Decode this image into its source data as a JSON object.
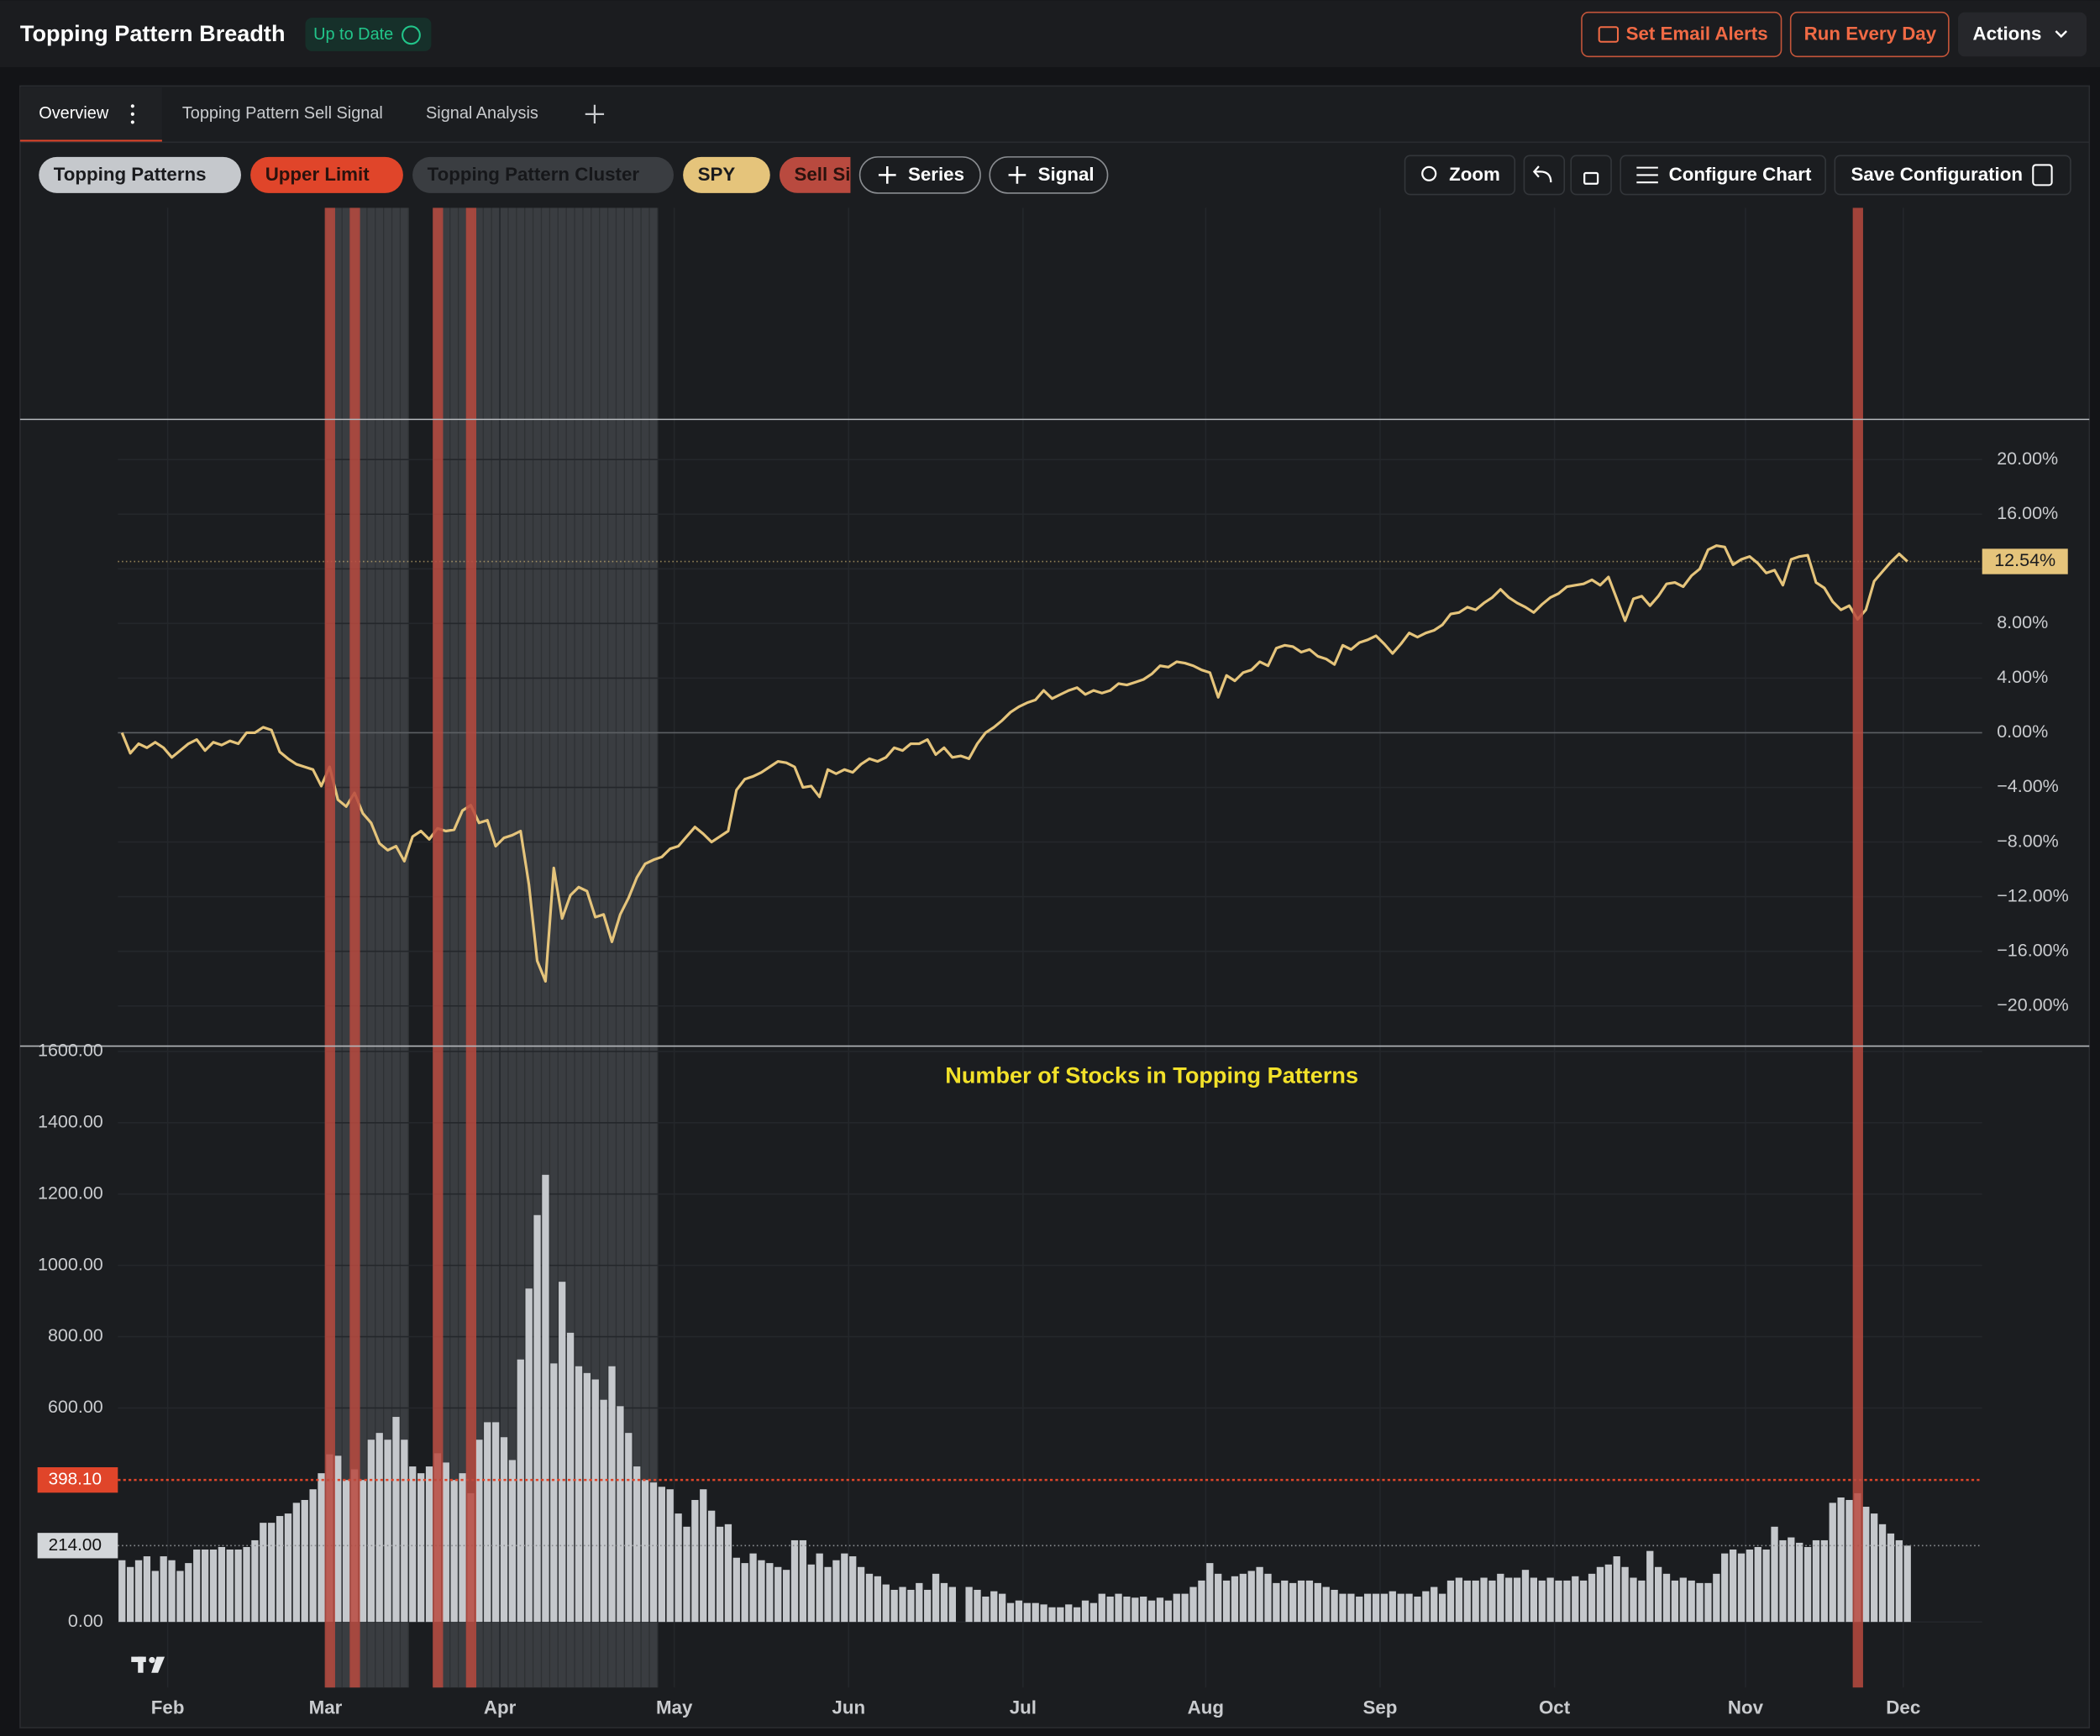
{
  "ui": {
    "title": "Topping Pattern Breadth",
    "status": "Up to Date",
    "buttons": [
      "Set Email Alerts",
      "Run Every Day",
      "Actions"
    ],
    "tabs": [
      "Overview",
      "Topping Pattern Sell Signal",
      "Signal Analysis"
    ],
    "add_buttons": [
      "Series",
      "Signal"
    ],
    "toolbar": [
      "Zoom",
      "Configure Chart",
      "Save Configuration"
    ]
  },
  "chart_data": {
    "type": "combo",
    "title": "Number of Stocks in Topping Patterns",
    "xlim": [
      0,
      224.5
    ],
    "xticks": [
      {
        "value": 6,
        "label": "Feb"
      },
      {
        "value": 25,
        "label": "Mar"
      },
      {
        "value": 46,
        "label": "Apr"
      },
      {
        "value": 67,
        "label": "May"
      },
      {
        "value": 88,
        "label": "Jun"
      },
      {
        "value": 109,
        "label": "Jul"
      },
      {
        "value": 131,
        "label": "Aug"
      },
      {
        "value": 152,
        "label": "Sep"
      },
      {
        "value": 173,
        "label": "Oct"
      },
      {
        "value": 196,
        "label": "Nov"
      },
      {
        "value": 215,
        "label": "Dec"
      }
    ],
    "ylim": [
      -184,
      1615
    ],
    "yticks": [
      {
        "value": 0,
        "label": "0.00"
      },
      {
        "value": 600,
        "label": "600.00"
      },
      {
        "value": 800,
        "label": "800.00"
      },
      {
        "value": 1000,
        "label": "1000.00"
      },
      {
        "value": 1200,
        "label": "1200.00"
      },
      {
        "value": 1400,
        "label": "1400.00"
      },
      {
        "value": 1600,
        "label": "1600.00"
      }
    ],
    "y2lim": [
      -22.94,
      22.94
    ],
    "y2ticks": [
      {
        "value": 20,
        "label": "20.00%"
      },
      {
        "value": 16,
        "label": "16.00%"
      },
      {
        "value": 12,
        "label": "12.00%"
      },
      {
        "value": 8,
        "label": "8.00%"
      },
      {
        "value": 4,
        "label": "4.00%"
      },
      {
        "value": 0,
        "label": "0.00%"
      },
      {
        "value": -4,
        "label": "−4.00%"
      },
      {
        "value": -8,
        "label": "−8.00%"
      },
      {
        "value": -12,
        "label": "−12.00%"
      },
      {
        "value": -16,
        "label": "−16.00%"
      },
      {
        "value": -20,
        "label": "−20.00%"
      }
    ],
    "grid": true,
    "series": [
      {
        "name": "Topping Patterns",
        "type": "bar",
        "color": "#c5c8cc",
        "last_label": "214.00",
        "values": [
          173,
          154,
          173,
          184,
          143,
          184,
          173,
          143,
          165,
          203,
          203,
          203,
          210,
          203,
          203,
          210,
          229,
          278,
          278,
          297,
          304,
          334,
          342,
          372,
          417,
          470,
          466,
          398,
          428,
          398,
          511,
          530,
          511,
          575,
          511,
          436,
          417,
          436,
          473,
          447,
          398,
          417,
          361,
          511,
          560,
          560,
          518,
          454,
          736,
          935,
          1141,
          1254,
          725,
          954,
          811,
          717,
          698,
          680,
          623,
          717,
          605,
          530,
          436,
          398,
          391,
          379,
          372,
          304,
          267,
          342,
          372,
          312,
          267,
          274,
          180,
          165,
          192,
          173,
          165,
          154,
          146,
          229,
          229,
          161,
          192,
          154,
          173,
          192,
          184,
          154,
          135,
          128,
          105,
          90,
          98,
          90,
          109,
          90,
          135,
          109,
          98,
          null,
          98,
          90,
          71,
          86,
          79,
          53,
          60,
          53,
          53,
          49,
          41,
          41,
          49,
          41,
          60,
          53,
          79,
          71,
          79,
          71,
          68,
          71,
          60,
          68,
          60,
          79,
          79,
          98,
          116,
          165,
          135,
          116,
          128,
          135,
          143,
          154,
          135,
          109,
          116,
          109,
          116,
          116,
          109,
          98,
          90,
          79,
          79,
          71,
          79,
          79,
          79,
          86,
          79,
          79,
          71,
          86,
          98,
          79,
          116,
          124,
          116,
          116,
          124,
          116,
          135,
          124,
          124,
          146,
          124,
          116,
          124,
          116,
          116,
          128,
          116,
          135,
          154,
          161,
          184,
          154,
          124,
          116,
          199,
          154,
          135,
          116,
          124,
          116,
          109,
          109,
          135,
          192,
          203,
          192,
          203,
          210,
          203,
          267,
          229,
          237,
          222,
          210,
          229,
          229,
          334,
          349,
          342,
          361,
          323,
          304,
          274,
          248,
          229,
          214
        ]
      },
      {
        "name": "Upper Limit",
        "type": "hline",
        "color": "#e0452a",
        "value": 398.1,
        "value_label": "398.10"
      },
      {
        "name": "Topping Pattern Cluster",
        "type": "band",
        "color": "#3a3d41",
        "ranges": [
          [
            25,
            34
          ],
          [
            38,
            64
          ]
        ]
      },
      {
        "name": "SPY",
        "type": "line",
        "axis": "y2",
        "color": "#e5c47b",
        "last_label": "12.54%",
        "values": [
          0,
          -1.5,
          -0.8,
          -1.1,
          -0.7,
          -1.1,
          -1.8,
          -1.3,
          -0.8,
          -0.5,
          -1.3,
          -0.7,
          -0.9,
          -0.6,
          -0.8,
          0,
          0,
          0.4,
          0.2,
          -1.4,
          -1.9,
          -2.3,
          -2.5,
          -2.7,
          -3.9,
          -2.5,
          -4.9,
          -5.4,
          -4.4,
          -5.9,
          -6.6,
          -8.1,
          -8.6,
          -8.3,
          -9.4,
          -7.6,
          -7.2,
          -7.8,
          -7.0,
          -7.2,
          -7.1,
          -5.7,
          -5.3,
          -6.6,
          -6.4,
          -8.3,
          -7.7,
          -7.5,
          -7.2,
          -11.1,
          -16.7,
          -18.2,
          -9.9,
          -13.6,
          -11.9,
          -11.3,
          -11.6,
          -13.5,
          -13.3,
          -15.3,
          -13.3,
          -12.1,
          -10.6,
          -9.6,
          -9.3,
          -9.1,
          -8.5,
          -8.3,
          -7.6,
          -6.9,
          -7.4,
          -8.0,
          -7.6,
          -7.2,
          -4.2,
          -3.4,
          -3.2,
          -2.9,
          -2.5,
          -2.1,
          -2.2,
          -2.5,
          -4.0,
          -3.9,
          -4.7,
          -2.7,
          -3.0,
          -2.7,
          -2.9,
          -2.3,
          -1.9,
          -2.1,
          -1.8,
          -1.1,
          -1.3,
          -0.8,
          -0.8,
          -0.5,
          -1.6,
          -1.1,
          -1.8,
          -1.7,
          -1.9,
          -0.8,
          0,
          0.4,
          0.9,
          1.5,
          1.9,
          2.2,
          2.4,
          3.1,
          2.5,
          2.8,
          3.1,
          3.3,
          2.8,
          3.1,
          2.9,
          3.1,
          3.6,
          3.5,
          3.7,
          3.9,
          4.3,
          4.9,
          4.8,
          5.2,
          5.1,
          4.9,
          4.6,
          4.4,
          2.6,
          4.2,
          3.8,
          4.4,
          4.6,
          5.2,
          4.9,
          6.2,
          6.4,
          6.3,
          5.9,
          6.1,
          5.6,
          5.4,
          5.0,
          6.4,
          6.1,
          6.6,
          6.8,
          7.1,
          6.5,
          5.8,
          6.5,
          7.3,
          7.0,
          7.3,
          7.5,
          7.9,
          8.7,
          8.8,
          9.2,
          9.0,
          9.5,
          9.9,
          10.5,
          9.9,
          9.5,
          9.2,
          8.8,
          9.4,
          9.9,
          10.2,
          10.7,
          10.8,
          10.9,
          11.2,
          10.8,
          11.4,
          9.8,
          8.2,
          9.8,
          10.0,
          9.3,
          10.0,
          10.9,
          11.0,
          10.7,
          11.5,
          12.0,
          13.4,
          13.7,
          13.6,
          12.3,
          12.7,
          12.9,
          12.4,
          11.7,
          11.9,
          10.8,
          12.7,
          12.9,
          13.0,
          11.0,
          10.6,
          9.6,
          9.0,
          9.3,
          8.3,
          9.0,
          11.1,
          11.8,
          12.5,
          13.1,
          12.54
        ]
      },
      {
        "name": "Sell Signal",
        "type": "signal",
        "color": "#b94a3f",
        "indices": [
          25,
          28,
          38,
          42,
          209
        ]
      }
    ]
  }
}
